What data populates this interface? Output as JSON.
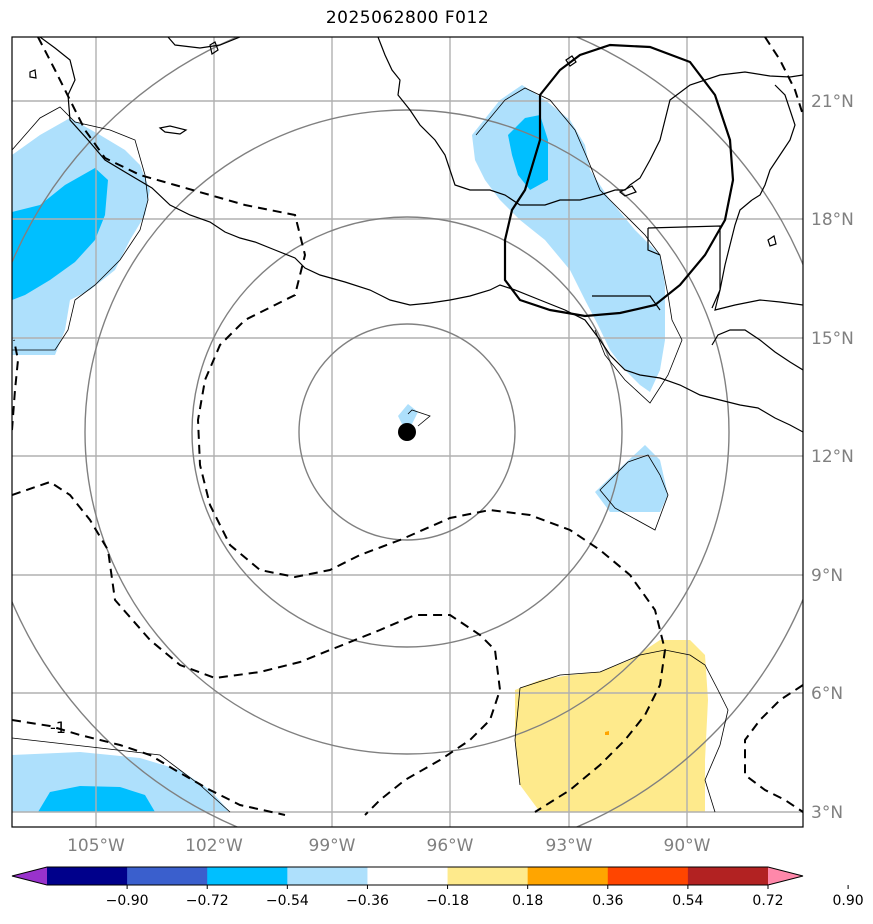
{
  "title": "2025062800 F012",
  "map": {
    "lon_labels": [
      "105°W",
      "102°W",
      "99°W",
      "96°W",
      "93°W",
      "90°W"
    ],
    "lat_labels": [
      "21°N",
      "18°N",
      "15°N",
      "12°N",
      "9°N",
      "6°N",
      "3°N"
    ],
    "contour_label": "-1",
    "storm_center": {
      "lon": "97°W",
      "lat": "12.6°N"
    },
    "colors": {
      "coastline": "#000000",
      "grid": "#b0b0b0",
      "range_rings": "#808080",
      "light_blue": "#aee0fc",
      "medium_blue": "#00bfff",
      "light_yellow": "#feea8c",
      "orange": "#ffa500"
    }
  },
  "colorbar": {
    "tick_labels": [
      "−0.90",
      "−0.72",
      "−0.54",
      "−0.36",
      "−0.18",
      "0.18",
      "0.36",
      "0.54",
      "0.72",
      "0.90"
    ],
    "colors": [
      "#9932cc",
      "#00008b",
      "#3a5fcd",
      "#00bfff",
      "#aee0fc",
      "#ffffff",
      "#feea8c",
      "#ffa500",
      "#ff4500",
      "#b22222",
      "#ff88aa"
    ]
  }
}
